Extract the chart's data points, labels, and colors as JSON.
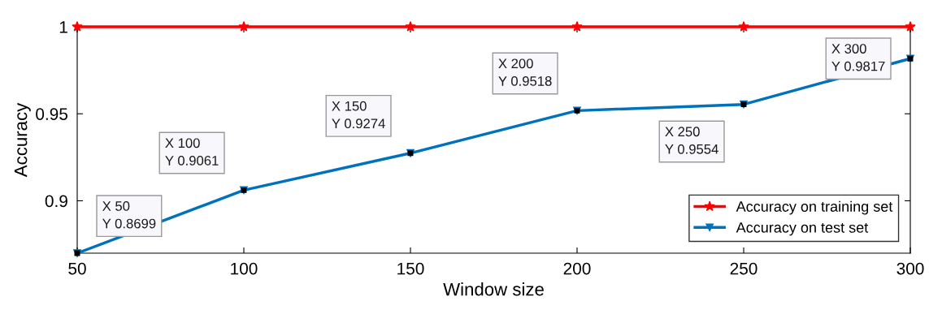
{
  "chart_data": {
    "type": "line",
    "xlabel": "Window size",
    "ylabel": "Accuracy",
    "x": [
      50,
      100,
      150,
      200,
      250,
      300
    ],
    "series": [
      {
        "name": "Accuracy on training set",
        "color": "#ff0000",
        "marker": "star",
        "values": [
          1,
          1,
          1,
          1,
          1,
          1
        ]
      },
      {
        "name": "Accuracy on test set",
        "color": "#0072bd",
        "marker": "triangle",
        "values": [
          0.8699,
          0.9061,
          0.9274,
          0.9518,
          0.9554,
          0.9817
        ]
      }
    ],
    "xlim": [
      50,
      300
    ],
    "xticks": [
      50,
      100,
      150,
      200,
      250,
      300
    ],
    "ylim": [
      0.8699,
      1
    ],
    "yticks": [
      0.9,
      0.95,
      1
    ],
    "grid": false,
    "legend": "bottom right",
    "line_style": "solid",
    "annotations": [
      {
        "text": "X 50\nY 0.8699",
        "x": 50,
        "y": 0.8699
      },
      {
        "text": "X 100\nY 0.9061",
        "x": 100,
        "y": 0.9061
      },
      {
        "text": "X 150\nY 0.9274",
        "x": 150,
        "y": 0.9274
      },
      {
        "text": "X 200\nY 0.9518",
        "x": 200,
        "y": 0.9518
      },
      {
        "text": "X 250\nY 0.9554",
        "x": 250,
        "y": 0.9554
      },
      {
        "text": "X 300\nY 0.9817",
        "x": 300,
        "y": 0.9817
      }
    ]
  }
}
